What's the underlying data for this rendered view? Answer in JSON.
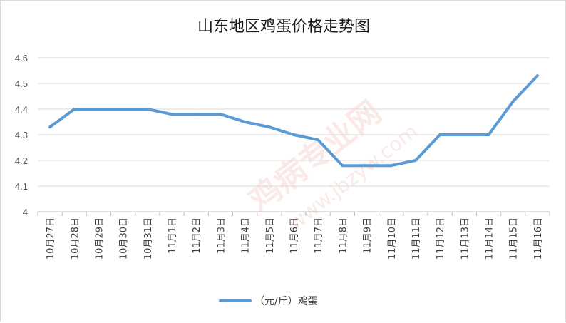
{
  "chart_data": {
    "type": "line",
    "title": "山东地区鸡蛋价格走势图",
    "categories": [
      "10月27日",
      "10月28日",
      "10月29日",
      "10月30日",
      "10月31日",
      "11月1日",
      "11月2日",
      "11月3日",
      "11月4日",
      "11月5日",
      "11月6日",
      "11月7日",
      "11月8日",
      "11月9日",
      "11月10日",
      "11月11日",
      "11月12日",
      "11月13日",
      "11月14日",
      "11月15日",
      "11月16日"
    ],
    "series": [
      {
        "name": "（元/斤）鸡蛋",
        "values": [
          4.33,
          4.4,
          4.4,
          4.4,
          4.4,
          4.38,
          4.38,
          4.38,
          4.35,
          4.33,
          4.3,
          4.28,
          4.18,
          4.18,
          4.18,
          4.2,
          4.3,
          4.3,
          4.3,
          4.43,
          4.53
        ]
      }
    ],
    "ylim": [
      4.0,
      4.6
    ],
    "yticks": [
      "4",
      "4.1",
      "4.2",
      "4.3",
      "4.4",
      "4.5",
      "4.6"
    ],
    "grid": true,
    "legend": "bottom",
    "colors": {
      "line": "#5b9bd5",
      "grid": "#d9d9d9",
      "axis": "#bfbfbf"
    }
  },
  "watermark": {
    "text": "鸡病专业网 www.jbzyw.com"
  }
}
